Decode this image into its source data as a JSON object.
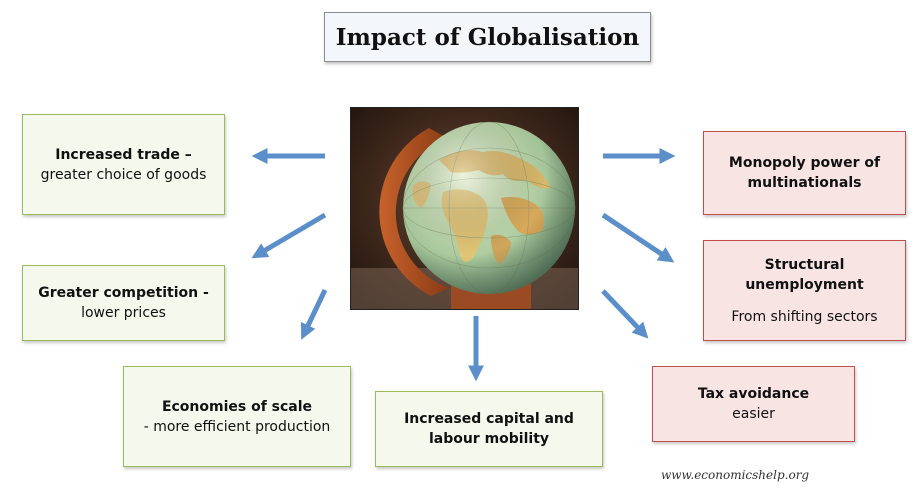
{
  "title": "Impact of Globalisation",
  "boxes": {
    "trade": {
      "bold": "Increased trade –",
      "normal": "greater choice of goods"
    },
    "competition": {
      "bold": "Greater competition -",
      "normal": "lower prices"
    },
    "scale": {
      "bold": "Economies of scale",
      "normal": "- more efficient production"
    },
    "mobility": {
      "line1": "Increased capital and",
      "line2": "labour mobility"
    },
    "monopoly": {
      "line1": "Monopoly power of",
      "line2": "multinationals"
    },
    "structural": {
      "line1": "Structural",
      "line2": "unemployment",
      "normal": "From shifting sectors"
    },
    "tax": {
      "bold": "Tax avoidance",
      "normal": "easier"
    }
  },
  "credit": "www.economicshelp.org",
  "colors": {
    "positive_fill": "#f5f8ec",
    "positive_border": "#9bbb5b",
    "negative_fill": "#f9e4e4",
    "negative_border": "#c0504d",
    "arrow": "#5b8fc9"
  }
}
